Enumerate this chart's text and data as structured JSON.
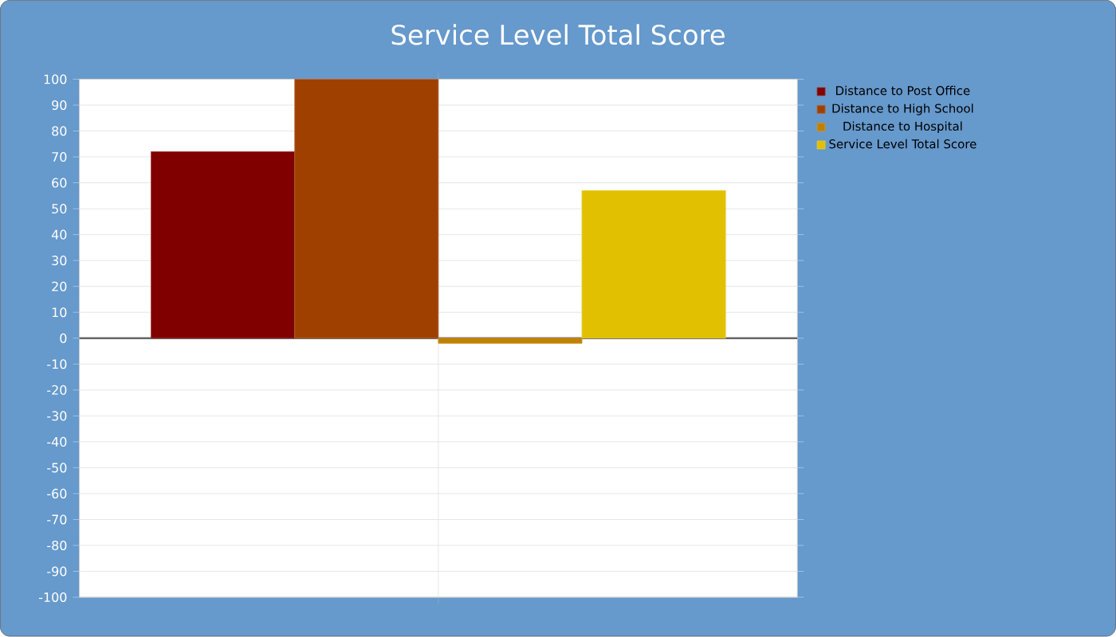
{
  "chart_data": {
    "type": "bar",
    "title": "Service Level Total Score",
    "categories": [
      null
    ],
    "series": [
      {
        "name": "Distance to Post Office",
        "color": "#800000",
        "values": [
          72
        ]
      },
      {
        "name": "Distance to High School",
        "color": "#a04000",
        "values": [
          100
        ]
      },
      {
        "name": "Distance to Hospital",
        "color": "#c08000",
        "values": [
          -2
        ]
      },
      {
        "name": "Service Level Total Score",
        "color": "#e0c000",
        "values": [
          57
        ]
      }
    ],
    "ylim": [
      -100,
      100
    ],
    "yticks": [
      -100,
      -90,
      -80,
      -70,
      -60,
      -50,
      -40,
      -30,
      -20,
      -10,
      0,
      10,
      20,
      30,
      40,
      50,
      60,
      70,
      80,
      90,
      100
    ],
    "grid": true,
    "legend": "top right"
  }
}
